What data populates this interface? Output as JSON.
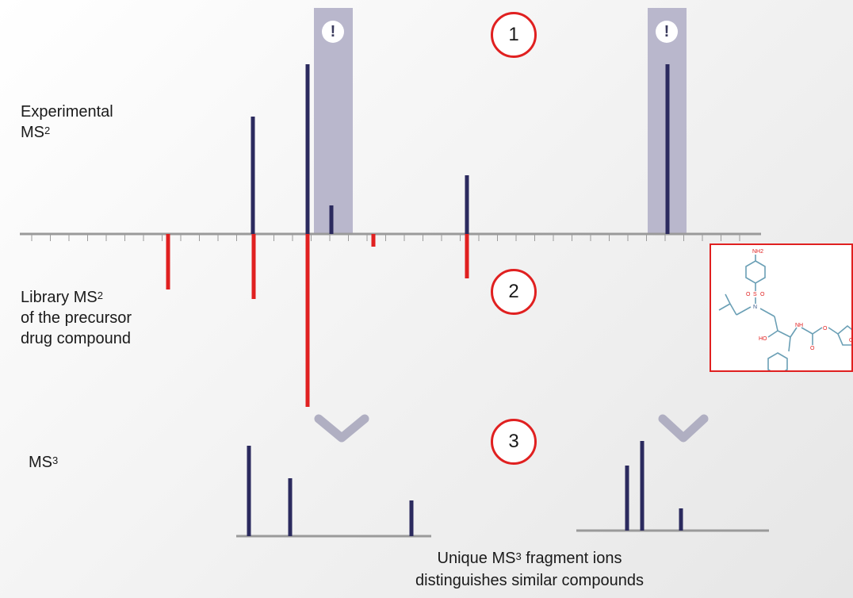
{
  "labels": {
    "experimental": "Experimental",
    "experimental_ms": "MS",
    "experimental_sup": "2",
    "library": "Library MS",
    "library_sup": "2",
    "library_line2": "of the precursor",
    "library_line3": "drug compound",
    "ms3": "MS",
    "ms3_sup": "3"
  },
  "steps": [
    "1",
    "2",
    "3"
  ],
  "alert_mark": "!",
  "caption": {
    "line1_pre": "Unique MS",
    "line1_sup": "3",
    "line1_post": " fragment ions",
    "line2": "distinguishes similar compounds"
  },
  "structure": {
    "atoms": [
      "NH2",
      "O",
      "S",
      "O",
      "N",
      "HO",
      "NH",
      "O",
      "O",
      "O"
    ]
  },
  "colors": {
    "experimental_peak": "#2b2a5e",
    "library_peak": "#e02020",
    "highlight_band": "#b9b7cc",
    "axis": "#9a9a9a",
    "circle_border": "#e02020",
    "chevron": "#b0afc2"
  },
  "chart_data": [
    {
      "type": "bar",
      "name": "Experimental MS2",
      "x": [
        319,
        388,
        418,
        589,
        842
      ],
      "values": [
        148,
        214,
        36,
        74,
        214
      ]
    },
    {
      "type": "bar",
      "name": "Library MS2",
      "x": [
        212,
        320,
        388,
        471,
        589
      ],
      "values": [
        -70,
        -82,
        -218,
        -16,
        -56
      ]
    },
    {
      "type": "bar",
      "name": "MS3 left",
      "x": [
        314,
        366,
        519
      ],
      "values": [
        114,
        73,
        45
      ]
    },
    {
      "type": "bar",
      "name": "MS3 right",
      "x": [
        791,
        810,
        859
      ],
      "values": [
        82,
        113,
        28
      ]
    }
  ]
}
